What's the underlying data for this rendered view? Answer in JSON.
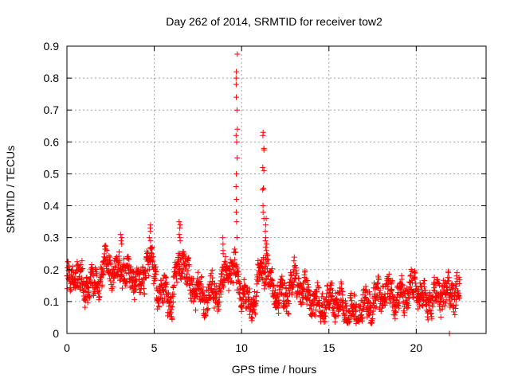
{
  "chart_data": {
    "type": "scatter",
    "title": "Day 262 of 2014, SRMTID for receiver tow2",
    "xlabel": "GPS time / hours",
    "ylabel": "SRMTID / TECUs",
    "xlim": [
      0,
      24
    ],
    "ylim": [
      0,
      0.9
    ],
    "xticks": [
      0,
      5,
      10,
      15,
      20
    ],
    "xtick_labels": [
      "0",
      "5",
      "10",
      "15",
      "20"
    ],
    "yticks": [
      0,
      0.1,
      0.2,
      0.3,
      0.4,
      0.5,
      0.6,
      0.7,
      0.8,
      0.9
    ],
    "ytick_labels": [
      "0",
      "0.1",
      "0.2",
      "0.3",
      "0.4",
      "0.5",
      "0.6",
      "0.7",
      "0.8",
      "0.9"
    ],
    "grid": true,
    "marker": "+",
    "color": "#ff0000",
    "series": [
      {
        "name": "tow2",
        "trend": [
          [
            0.0,
            0.17
          ],
          [
            0.3,
            0.15
          ],
          [
            0.5,
            0.21
          ],
          [
            0.8,
            0.16
          ],
          [
            1.0,
            0.13
          ],
          [
            1.3,
            0.17
          ],
          [
            1.6,
            0.14
          ],
          [
            2.0,
            0.19
          ],
          [
            2.3,
            0.22
          ],
          [
            2.6,
            0.2
          ],
          [
            3.0,
            0.19
          ],
          [
            3.3,
            0.21
          ],
          [
            3.6,
            0.17
          ],
          [
            4.0,
            0.18
          ],
          [
            4.3,
            0.14
          ],
          [
            4.6,
            0.24
          ],
          [
            4.9,
            0.2
          ],
          [
            5.2,
            0.14
          ],
          [
            5.6,
            0.12
          ],
          [
            6.0,
            0.1
          ],
          [
            6.3,
            0.19
          ],
          [
            6.6,
            0.25
          ],
          [
            6.9,
            0.17
          ],
          [
            7.2,
            0.15
          ],
          [
            7.6,
            0.12
          ],
          [
            8.0,
            0.11
          ],
          [
            8.4,
            0.13
          ],
          [
            8.8,
            0.14
          ],
          [
            9.2,
            0.2
          ],
          [
            9.5,
            0.2
          ],
          [
            9.8,
            0.17
          ],
          [
            10.1,
            0.12
          ],
          [
            10.4,
            0.09
          ],
          [
            10.8,
            0.11
          ],
          [
            11.1,
            0.2
          ],
          [
            11.4,
            0.22
          ],
          [
            11.7,
            0.14
          ],
          [
            12.0,
            0.13
          ],
          [
            12.5,
            0.11
          ],
          [
            13.0,
            0.17
          ],
          [
            13.5,
            0.14
          ],
          [
            14.0,
            0.1
          ],
          [
            14.5,
            0.09
          ],
          [
            15.0,
            0.1
          ],
          [
            15.5,
            0.1
          ],
          [
            16.0,
            0.07
          ],
          [
            16.5,
            0.06
          ],
          [
            17.0,
            0.09
          ],
          [
            17.5,
            0.1
          ],
          [
            18.0,
            0.12
          ],
          [
            18.5,
            0.13
          ],
          [
            19.0,
            0.11
          ],
          [
            19.5,
            0.12
          ],
          [
            20.0,
            0.15
          ],
          [
            20.5,
            0.09
          ],
          [
            21.0,
            0.11
          ],
          [
            21.5,
            0.13
          ],
          [
            22.0,
            0.13
          ],
          [
            22.5,
            0.13
          ]
        ],
        "spread": 0.04,
        "step_hours": 0.012,
        "spikes": [
          {
            "x": 9.72,
            "values": [
              0.875,
              0.82,
              0.8,
              0.78,
              0.74,
              0.7,
              0.64,
              0.62,
              0.6,
              0.55,
              0.5,
              0.46,
              0.42,
              0.38,
              0.35,
              0.3
            ]
          },
          {
            "x": 11.25,
            "values": [
              0.63,
              0.62,
              0.58,
              0.575,
              0.52,
              0.51,
              0.455,
              0.45,
              0.4,
              0.38,
              0.36
            ]
          },
          {
            "x": 11.4,
            "values": [
              0.36,
              0.34,
              0.32,
              0.3,
              0.29,
              0.28,
              0.27,
              0.26
            ]
          },
          {
            "x": 6.45,
            "values": [
              0.35,
              0.34,
              0.33,
              0.31,
              0.3,
              0.29
            ]
          },
          {
            "x": 4.75,
            "values": [
              0.34,
              0.33,
              0.32,
              0.3,
              0.29
            ]
          },
          {
            "x": 3.1,
            "values": [
              0.31,
              0.3,
              0.29,
              0.28
            ]
          },
          {
            "x": 8.95,
            "values": [
              0.3,
              0.28,
              0.26,
              0.25
            ]
          }
        ],
        "outliers": [
          [
            21.9,
            0.0
          ]
        ]
      }
    ]
  }
}
